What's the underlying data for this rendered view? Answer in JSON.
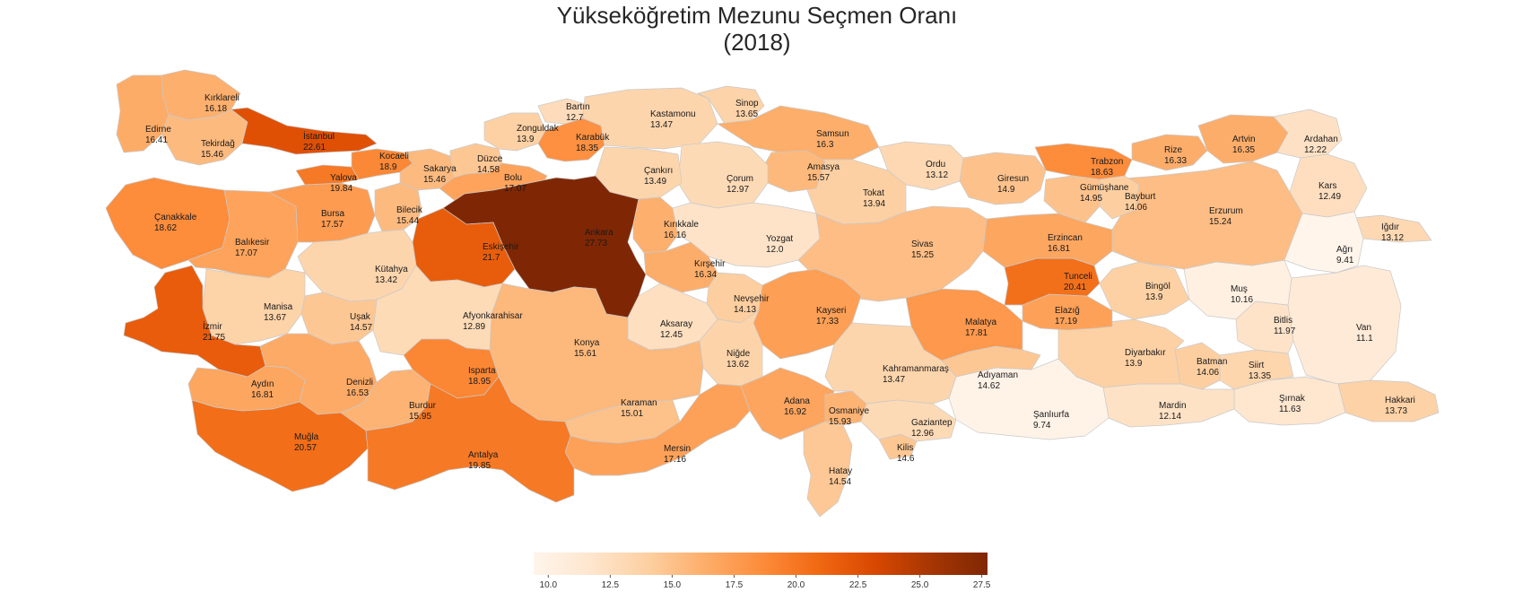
{
  "title": {
    "line1": "Yükseköğretim Mezunu Seçmen Oranı",
    "line2": "(2018)"
  },
  "colormap": {
    "name": "Oranges",
    "min": 9.41,
    "max": 27.73,
    "stops": [
      "#fff5eb",
      "#fee6ce",
      "#fdd0a2",
      "#fdae6b",
      "#fd8d3c",
      "#f16913",
      "#d94801",
      "#a63603",
      "#7f2704"
    ]
  },
  "colorbar": {
    "ticks": [
      "10.0",
      "12.5",
      "15.0",
      "17.5",
      "20.0",
      "22.5",
      "25.0",
      "27.5"
    ],
    "tick_values": [
      10.0,
      12.5,
      15.0,
      17.5,
      20.0,
      22.5,
      25.0,
      27.5
    ]
  },
  "provinces": [
    {
      "name": "Edirne",
      "value": "16.41"
    },
    {
      "name": "Kırklareli",
      "value": "16.18"
    },
    {
      "name": "Tekirdağ",
      "value": "15.46"
    },
    {
      "name": "İstanbul",
      "value": "22.61"
    },
    {
      "name": "Çanakkale",
      "value": "18.62"
    },
    {
      "name": "Balıkesir",
      "value": "17.07"
    },
    {
      "name": "Bursa",
      "value": "17.57"
    },
    {
      "name": "Yalova",
      "value": "19.84"
    },
    {
      "name": "Kocaeli",
      "value": "18.9"
    },
    {
      "name": "Sakarya",
      "value": "15.46"
    },
    {
      "name": "Düzce",
      "value": "14.58"
    },
    {
      "name": "Bolu",
      "value": "17.07"
    },
    {
      "name": "Zonguldak",
      "value": "13.9"
    },
    {
      "name": "Bartın",
      "value": "12.7"
    },
    {
      "name": "Karabük",
      "value": "18.35"
    },
    {
      "name": "Kastamonu",
      "value": "13.47"
    },
    {
      "name": "Sinop",
      "value": "13.65"
    },
    {
      "name": "Samsun",
      "value": "16.3"
    },
    {
      "name": "Ordu",
      "value": "13.12"
    },
    {
      "name": "Giresun",
      "value": "14.9"
    },
    {
      "name": "Trabzon",
      "value": "18.63"
    },
    {
      "name": "Rize",
      "value": "16.33"
    },
    {
      "name": "Artvin",
      "value": "16.35"
    },
    {
      "name": "Ardahan",
      "value": "12.22"
    },
    {
      "name": "Kars",
      "value": "12.49"
    },
    {
      "name": "Iğdır",
      "value": "13.12"
    },
    {
      "name": "Ağrı",
      "value": "9.41"
    },
    {
      "name": "Van",
      "value": "11.1"
    },
    {
      "name": "Hakkari",
      "value": "13.73"
    },
    {
      "name": "Şırnak",
      "value": "11.63"
    },
    {
      "name": "Siirt",
      "value": "13.35"
    },
    {
      "name": "Bitlis",
      "value": "11.97"
    },
    {
      "name": "Muş",
      "value": "10.16"
    },
    {
      "name": "Batman",
      "value": "14.06"
    },
    {
      "name": "Mardin",
      "value": "12.14"
    },
    {
      "name": "Diyarbakır",
      "value": "13.9"
    },
    {
      "name": "Şanlıurfa",
      "value": "9.74"
    },
    {
      "name": "Adıyaman",
      "value": "14.62"
    },
    {
      "name": "Malatya",
      "value": "17.81"
    },
    {
      "name": "Elazığ",
      "value": "17.19"
    },
    {
      "name": "Tunceli",
      "value": "20.41"
    },
    {
      "name": "Bingöl",
      "value": "13.9"
    },
    {
      "name": "Erzincan",
      "value": "16.81"
    },
    {
      "name": "Erzurum",
      "value": "15.24"
    },
    {
      "name": "Bayburt",
      "value": "14.06"
    },
    {
      "name": "Gümüşhane",
      "value": "14.95"
    },
    {
      "name": "Tokat",
      "value": "13.94"
    },
    {
      "name": "Amasya",
      "value": "15.57"
    },
    {
      "name": "Çorum",
      "value": "12.97"
    },
    {
      "name": "Çankırı",
      "value": "13.49"
    },
    {
      "name": "Ankara",
      "value": "27.73"
    },
    {
      "name": "Kırıkkale",
      "value": "16.16"
    },
    {
      "name": "Yozgat",
      "value": "12.0"
    },
    {
      "name": "Sivas",
      "value": "15.25"
    },
    {
      "name": "Kırşehir",
      "value": "16.34"
    },
    {
      "name": "Nevşehir",
      "value": "14.13"
    },
    {
      "name": "Kayseri",
      "value": "17.33"
    },
    {
      "name": "Aksaray",
      "value": "12.45"
    },
    {
      "name": "Niğde",
      "value": "13.62"
    },
    {
      "name": "Konya",
      "value": "15.61"
    },
    {
      "name": "Karaman",
      "value": "15.01"
    },
    {
      "name": "Mersin",
      "value": "17.16"
    },
    {
      "name": "Adana",
      "value": "16.92"
    },
    {
      "name": "Osmaniye",
      "value": "15.93"
    },
    {
      "name": "Hatay",
      "value": "14.54"
    },
    {
      "name": "Kilis",
      "value": "14.6"
    },
    {
      "name": "Gaziantep",
      "value": "12.96"
    },
    {
      "name": "Kahramanmaraş",
      "value": "13.47"
    },
    {
      "name": "Eskişehir",
      "value": "21.7"
    },
    {
      "name": "Bilecik",
      "value": "15.44"
    },
    {
      "name": "Kütahya",
      "value": "13.42"
    },
    {
      "name": "Afyonkarahisar",
      "value": "12.89"
    },
    {
      "name": "Uşak",
      "value": "14.57"
    },
    {
      "name": "Manisa",
      "value": "13.67"
    },
    {
      "name": "İzmir",
      "value": "21.75"
    },
    {
      "name": "Aydın",
      "value": "16.81"
    },
    {
      "name": "Denizli",
      "value": "16.53"
    },
    {
      "name": "Muğla",
      "value": "20.57"
    },
    {
      "name": "Burdur",
      "value": "15.95"
    },
    {
      "name": "Isparta",
      "value": "18.95"
    },
    {
      "name": "Antalya",
      "value": "19.85"
    }
  ]
}
